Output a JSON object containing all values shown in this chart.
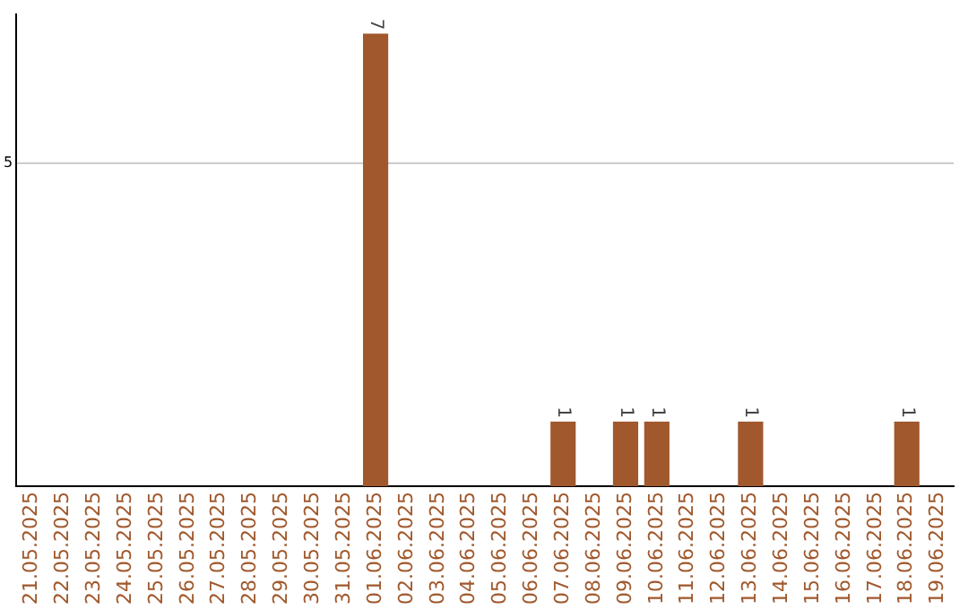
{
  "chart_data": {
    "type": "bar",
    "categories": [
      "21.05.2025",
      "22.05.2025",
      "23.05.2025",
      "24.05.2025",
      "25.05.2025",
      "26.05.2025",
      "27.05.2025",
      "28.05.2025",
      "29.05.2025",
      "30.05.2025",
      "31.05.2025",
      "01.06.2025",
      "02.06.2025",
      "03.06.2025",
      "04.06.2025",
      "05.06.2025",
      "06.06.2025",
      "07.06.2025",
      "08.06.2025",
      "09.06.2025",
      "10.06.2025",
      "11.06.2025",
      "12.06.2025",
      "13.06.2025",
      "14.06.2025",
      "15.06.2025",
      "16.06.2025",
      "17.06.2025",
      "18.06.2025",
      "19.06.2025"
    ],
    "values": [
      0,
      0,
      0,
      0,
      0,
      0,
      0,
      0,
      0,
      0,
      0,
      7,
      0,
      0,
      0,
      0,
      0,
      1,
      0,
      1,
      1,
      0,
      0,
      1,
      0,
      0,
      0,
      0,
      1,
      0
    ],
    "value_labels": [
      null,
      null,
      null,
      null,
      null,
      null,
      null,
      null,
      null,
      null,
      null,
      "7",
      null,
      null,
      null,
      null,
      null,
      "1",
      null,
      "1",
      "1",
      null,
      null,
      "1",
      null,
      null,
      null,
      null,
      "1",
      null
    ],
    "color": "#a0582c",
    "ylim": [
      0,
      7.3
    ],
    "yticks": [
      5
    ],
    "grid": "y",
    "legend": false
  }
}
